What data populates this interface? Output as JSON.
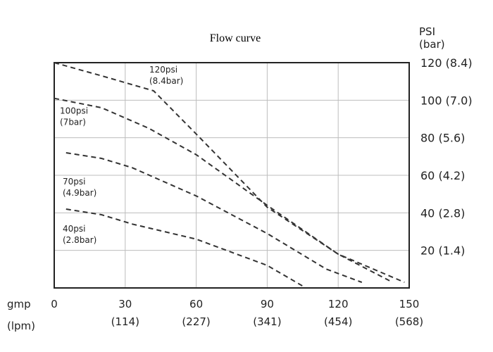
{
  "chart_data": {
    "type": "line",
    "title": "Flow curve",
    "x_axis": {
      "unit_primary": "gmp",
      "unit_secondary": "(lpm)",
      "range": [
        0,
        150
      ],
      "ticks": [
        {
          "value": 0,
          "label": "0",
          "sub": ""
        },
        {
          "value": 30,
          "label": "30",
          "sub": "(114)"
        },
        {
          "value": 60,
          "label": "60",
          "sub": "(227)"
        },
        {
          "value": 90,
          "label": "90",
          "sub": "(341)"
        },
        {
          "value": 120,
          "label": "120",
          "sub": "(454)"
        },
        {
          "value": 150,
          "label": "150",
          "sub": "(568)"
        }
      ]
    },
    "y_axis": {
      "position": "right",
      "unit_primary": "PSI",
      "unit_secondary": "(bar)",
      "range": [
        0,
        120
      ],
      "ticks": [
        {
          "value": 20,
          "label": "20 (1.4)"
        },
        {
          "value": 40,
          "label": "40 (2.8)"
        },
        {
          "value": 60,
          "label": "60 (4.2)"
        },
        {
          "value": 80,
          "label": "80 (5.6)"
        },
        {
          "value": 100,
          "label": "100 (7.0)"
        },
        {
          "value": 120,
          "label": "120 (8.4)"
        }
      ]
    },
    "grid": true,
    "series": [
      {
        "name": "120psi",
        "sub": "(8.4bar)",
        "points": [
          [
            0,
            120
          ],
          [
            20,
            113
          ],
          [
            42,
            105
          ],
          [
            60,
            82
          ],
          [
            90,
            43
          ],
          [
            120,
            18
          ],
          [
            148,
            3
          ]
        ]
      },
      {
        "name": "100psi",
        "sub": "(7bar)",
        "points": [
          [
            0,
            101
          ],
          [
            20,
            96
          ],
          [
            40,
            85
          ],
          [
            60,
            71
          ],
          [
            90,
            44
          ],
          [
            120,
            18
          ],
          [
            143,
            3
          ]
        ]
      },
      {
        "name": "70psi",
        "sub": "(4.9bar)",
        "points": [
          [
            5,
            72
          ],
          [
            20,
            69
          ],
          [
            33,
            64
          ],
          [
            60,
            49
          ],
          [
            90,
            29
          ],
          [
            115,
            10
          ],
          [
            130,
            3
          ]
        ]
      },
      {
        "name": "40psi",
        "sub": "(2.8bar)",
        "points": [
          [
            5,
            42
          ],
          [
            20,
            39
          ],
          [
            33,
            34
          ],
          [
            60,
            26
          ],
          [
            90,
            12
          ],
          [
            105,
            1
          ]
        ]
      }
    ]
  }
}
